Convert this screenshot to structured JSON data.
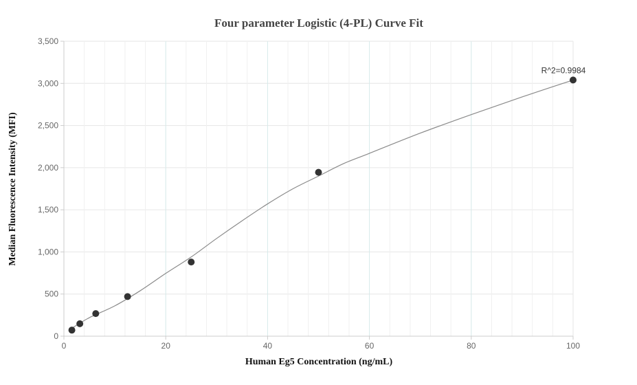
{
  "chart_data": {
    "type": "scatter",
    "title": "Four parameter Logistic (4-PL) Curve Fit",
    "xlabel": "Human Eg5 Concentration (ng/mL)",
    "ylabel": "Median Fluorescence Intensity (MFI)",
    "xlim": [
      0,
      100
    ],
    "ylim": [
      0,
      3500
    ],
    "x_ticks": [
      0,
      20,
      40,
      60,
      80,
      100
    ],
    "x_tick_labels": [
      "0",
      "20",
      "40",
      "60",
      "80",
      "100"
    ],
    "y_ticks": [
      0,
      500,
      1000,
      1500,
      2000,
      2500,
      3000,
      3500
    ],
    "y_tick_labels": [
      "0",
      "500",
      "1,000",
      "1,500",
      "2,000",
      "2,500",
      "3,000",
      "3,500"
    ],
    "grid": true,
    "points": [
      {
        "x": 1.5625,
        "y": 72
      },
      {
        "x": 3.125,
        "y": 148
      },
      {
        "x": 6.25,
        "y": 268
      },
      {
        "x": 12.5,
        "y": 470
      },
      {
        "x": 25,
        "y": 880
      },
      {
        "x": 50,
        "y": 1945
      },
      {
        "x": 100,
        "y": 3040
      }
    ],
    "fit_curve": {
      "model": "4-PL",
      "x": [
        1.5625,
        5,
        10,
        15,
        20,
        25,
        30,
        35,
        40,
        45,
        50,
        55,
        60,
        70,
        80,
        90,
        100
      ],
      "y": [
        95,
        220,
        360,
        540,
        745,
        940,
        1160,
        1370,
        1570,
        1750,
        1900,
        2050,
        2170,
        2410,
        2630,
        2840,
        3040
      ]
    },
    "annotation": {
      "text": "R^2=0.9984",
      "x": 100,
      "y": 3040
    },
    "colors": {
      "point": "#333333",
      "curve": "#8a8a8a",
      "grid": "#e6e6e6",
      "grid_major_x": "#d6eaea",
      "axis": "#cccccc"
    }
  }
}
